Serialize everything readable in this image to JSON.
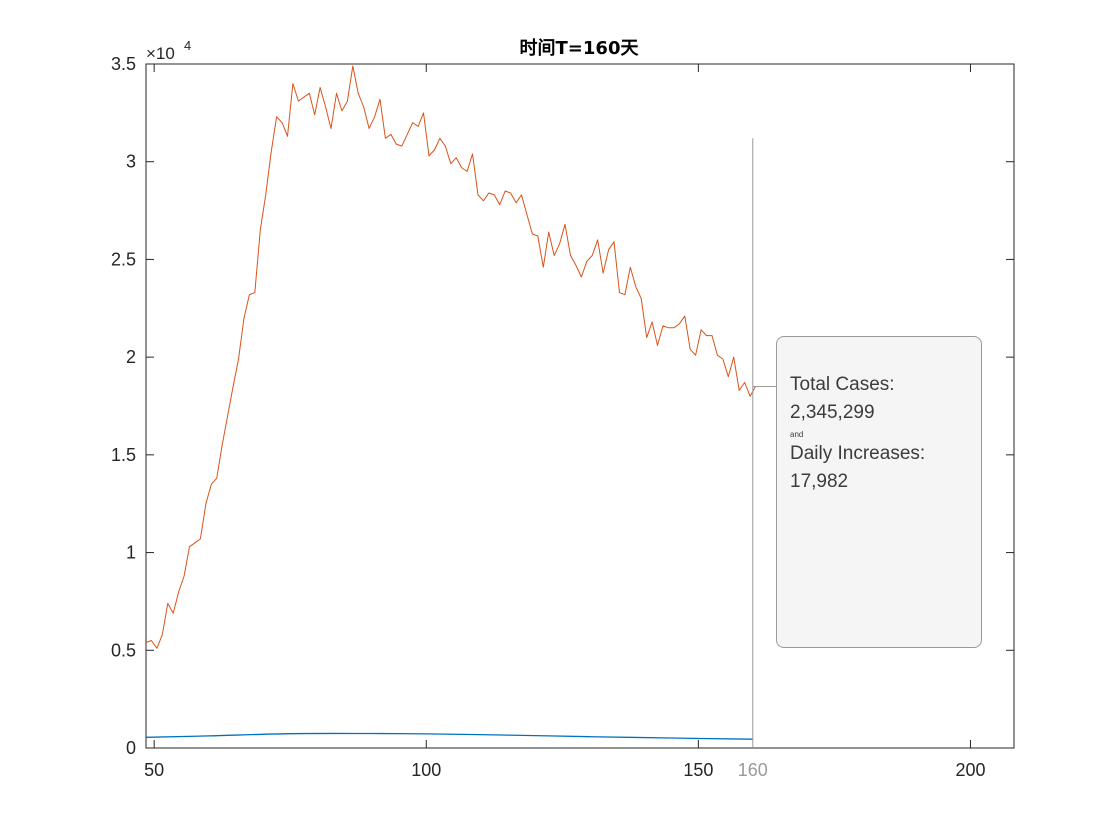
{
  "chart_data": {
    "type": "line",
    "title": "时间T=160天",
    "xlabel": "",
    "ylabel": "",
    "xlim": [
      48.5,
      208
    ],
    "ylim": [
      0,
      35000
    ],
    "y_exponent_label": "×10",
    "y_exponent_power": "4",
    "x_ticks": [
      {
        "value": 50,
        "label": "50",
        "color": "#262626"
      },
      {
        "value": 100,
        "label": "100",
        "color": "#262626"
      },
      {
        "value": 150,
        "label": "150",
        "color": "#262626"
      },
      {
        "value": 160,
        "label": "160",
        "color": "#9a9a9a"
      },
      {
        "value": 200,
        "label": "200",
        "color": "#262626"
      }
    ],
    "y_ticks": [
      {
        "value": 0,
        "label": "0"
      },
      {
        "value": 5000,
        "label": "0.5"
      },
      {
        "value": 10000,
        "label": "1"
      },
      {
        "value": 15000,
        "label": "1.5"
      },
      {
        "value": 20000,
        "label": "2"
      },
      {
        "value": 25000,
        "label": "2.5"
      },
      {
        "value": 30000,
        "label": "3"
      },
      {
        "value": 35000,
        "label": "3.5"
      }
    ],
    "grid": false,
    "series": [
      {
        "color": "#d95319",
        "x_start": 48.5,
        "x_step": 1,
        "values": [
          5400,
          5500,
          5100,
          5800,
          7400,
          6900,
          8000,
          8800,
          10300,
          10500,
          10700,
          12500,
          13500,
          13800,
          15500,
          17000,
          18500,
          19900,
          22000,
          23200,
          23300,
          26500,
          28300,
          30500,
          32300,
          32000,
          31300,
          34000,
          33100,
          33300,
          33500,
          32400,
          33800,
          32800,
          31700,
          33500,
          32600,
          33100,
          34900,
          33500,
          32800,
          31700,
          32300,
          33200,
          31200,
          31400,
          30900,
          30800,
          31400,
          32000,
          31800,
          32500,
          30300,
          30600,
          31200,
          30800,
          29900,
          30200,
          29700,
          29500,
          30400,
          28300,
          28000,
          28400,
          28300,
          27800,
          28500,
          28400,
          27900,
          28300,
          27300,
          26300,
          26200,
          24600,
          26400,
          25200,
          25800,
          26800,
          25200,
          24700,
          24100,
          24900,
          25200,
          26000,
          24300,
          25500,
          25900,
          23300,
          23200,
          24600,
          23600,
          23000,
          21000,
          21800,
          20600,
          21600,
          21500,
          21500,
          21700,
          22100,
          20400,
          20100,
          21400,
          21100,
          21100,
          20100,
          19900,
          19000,
          20000,
          18300,
          18700,
          18000,
          18500
        ],
        "linewidth": 1
      },
      {
        "color": "#0072bd",
        "x": [
          48.5,
          60,
          75,
          90,
          100,
          115,
          130,
          145,
          160
        ],
        "values": [
          550,
          620,
          730,
          740,
          720,
          660,
          580,
          510,
          450
        ],
        "linewidth": 1.3
      }
    ],
    "cursor": {
      "x": 160,
      "y_top": 31200,
      "pointer_y": 18500,
      "color": "#9a9a9a"
    }
  },
  "annotation": {
    "total_label": "Total Cases:",
    "total_value": "2,345,299",
    "connector": "and",
    "daily_label": "Daily Increases:",
    "daily_value": "17,982"
  }
}
